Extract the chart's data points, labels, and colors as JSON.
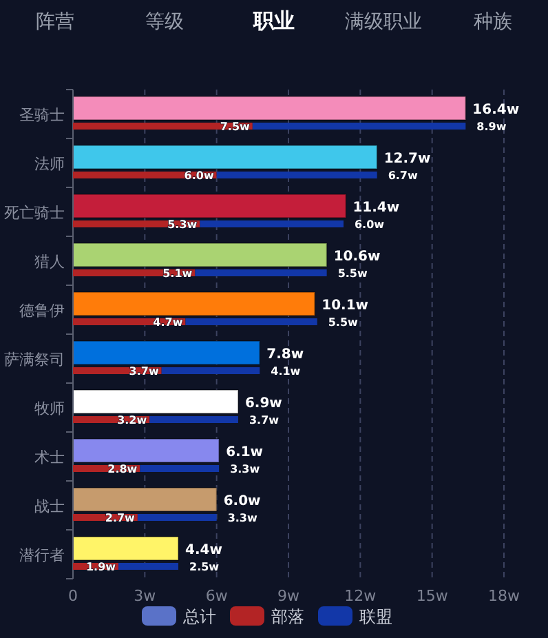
{
  "chart_data": [
    {
      "type": "bar",
      "orientation": "horizontal",
      "title": "职业",
      "annotations": [
        "阵营",
        "等级",
        "满级职业",
        "种族"
      ],
      "categories": [
        "圣骑士",
        "法师",
        "死亡骑士",
        "猎人",
        "德鲁伊",
        "萨满祭司",
        "牧师",
        "术士",
        "战士",
        "潜行者"
      ],
      "series": [
        {
          "name": "总计",
          "color": "#5a72c8",
          "colors": [
            "#f48cba",
            "#3fc7eb",
            "#c41e3a",
            "#aad372",
            "#ff7c0a",
            "#0070dd",
            "#ffffff",
            "#8788ee",
            "#c69b6d",
            "#fff468"
          ],
          "values": [
            16.4,
            12.7,
            11.4,
            10.6,
            10.1,
            7.8,
            6.9,
            6.1,
            6.0,
            4.4
          ],
          "value_labels": [
            "16.4w",
            "12.7w",
            "11.4w",
            "10.6w",
            "10.1w",
            "7.8w",
            "6.9w",
            "6.1w",
            "6.0w",
            "4.4w"
          ]
        }
      ],
      "xlim": [
        0,
        18
      ],
      "xticks": [
        0,
        {
          "value": 3,
          "label": "3w"
        },
        {
          "value": 6,
          "label": "6w"
        },
        {
          "value": 9,
          "label": "9w"
        },
        {
          "value": 12,
          "label": "12w"
        },
        {
          "value": 15,
          "label": "15w"
        },
        {
          "value": 18,
          "label": "18w"
        }
      ],
      "grid": "x",
      "legend": "bottom"
    },
    {
      "type": "bar",
      "orientation": "horizontal",
      "stacked": true,
      "categories": [
        null,
        null,
        null,
        null,
        null,
        null,
        null,
        null,
        null,
        null
      ],
      "series": [
        {
          "name": "部落",
          "color": "#b32425",
          "values": [
            7.5,
            6.0,
            5.3,
            5.1,
            4.7,
            3.7,
            3.2,
            2.8,
            2.7,
            1.9
          ],
          "value_labels": [
            "7.5w",
            "6.0w",
            "5.3w",
            "5.1w",
            "4.7w",
            "3.7w",
            "3.2w",
            "2.8w",
            "2.7w",
            "1.9w"
          ]
        },
        {
          "name": "联盟",
          "color": "#1237a8",
          "values": [
            8.9,
            6.7,
            6.0,
            5.5,
            5.5,
            4.1,
            3.7,
            3.3,
            3.3,
            2.5
          ],
          "value_labels": [
            "8.9w",
            "6.7w",
            "6.0w",
            "5.5w",
            "5.5w",
            "4.1w",
            "3.7w",
            "3.3w",
            "3.3w",
            "2.5w"
          ]
        }
      ],
      "legend": "bottom"
    }
  ]
}
